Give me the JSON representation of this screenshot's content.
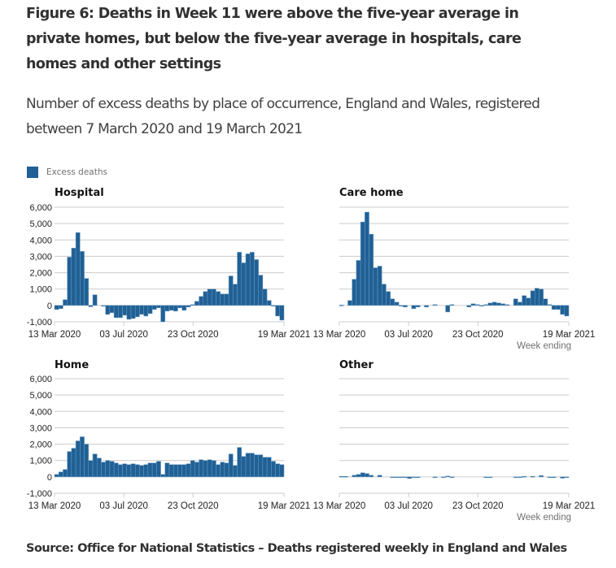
{
  "title": "Figure 6: Deaths in Week 11 were above the five-year average in private homes, but below the five-year average in hospitals, care homes and other settings",
  "subtitle": "Number of excess deaths by place of occurrence, England and Wales, registered between 7 March 2020 and 19 March 2021",
  "legend": {
    "label": "Excess deaths",
    "color": "#206095"
  },
  "source": "Source: Office for National Statistics – Deaths registered weekly in England and Wales",
  "chart_data": [
    {
      "type": "bar",
      "title": "Hospital",
      "xlabel": "",
      "ylabel": "",
      "ylim": [
        -1000,
        6000
      ],
      "yticks": [
        "6,000",
        "5,000",
        "4,000",
        "3,000",
        "2,000",
        "1,000",
        "0",
        "-1,000"
      ],
      "xticks": [
        "13 Mar 2020",
        "03 Jul 2020",
        "23 Oct 2020",
        "19 Mar 2021"
      ],
      "grid": true,
      "values": [
        -250,
        -200,
        350,
        2950,
        3500,
        4450,
        3300,
        1650,
        -80,
        650,
        0,
        -20,
        -550,
        -450,
        -750,
        -750,
        -600,
        -850,
        -800,
        -700,
        -550,
        -650,
        -500,
        -250,
        -150,
        -1000,
        -350,
        -300,
        -350,
        -150,
        -300,
        -100,
        50,
        250,
        550,
        850,
        1000,
        1000,
        850,
        700,
        700,
        1800,
        1300,
        3250,
        2600,
        3150,
        3250,
        2800,
        1850,
        1000,
        300,
        -50,
        -650,
        -900
      ]
    },
    {
      "type": "bar",
      "title": "Care home",
      "xlabel": "Week ending",
      "ylabel": "",
      "ylim": [
        -1000,
        6000
      ],
      "xticks": [
        "13 Mar 2020",
        "03 Jul 2020",
        "23 Oct 2020",
        "19 Mar 2021"
      ],
      "grid": true,
      "values": [
        20,
        0,
        300,
        1600,
        2750,
        5100,
        5700,
        4350,
        2300,
        2400,
        1300,
        850,
        400,
        200,
        -50,
        -100,
        0,
        -200,
        -100,
        0,
        -100,
        0,
        50,
        0,
        0,
        -400,
        50,
        0,
        0,
        0,
        -100,
        100,
        50,
        -50,
        50,
        150,
        200,
        150,
        100,
        50,
        0,
        400,
        200,
        600,
        450,
        900,
        1050,
        1000,
        400,
        50,
        -250,
        -250,
        -550,
        -650
      ]
    },
    {
      "type": "bar",
      "title": "Home",
      "xlabel": "",
      "ylabel": "",
      "ylim": [
        -1000,
        6000
      ],
      "yticks": [
        "6,000",
        "5,000",
        "4,000",
        "3,000",
        "2,000",
        "1,000",
        "0",
        "-1,000"
      ],
      "xticks": [
        "13 Mar 2020",
        "03 Jul 2020",
        "23 Oct 2020",
        "19 Mar 2021"
      ],
      "grid": true,
      "values": [
        150,
        300,
        450,
        1550,
        1750,
        2200,
        2450,
        2000,
        1000,
        1400,
        1150,
        900,
        1000,
        950,
        850,
        750,
        800,
        750,
        800,
        750,
        700,
        750,
        850,
        850,
        950,
        150,
        850,
        750,
        750,
        750,
        750,
        800,
        1000,
        900,
        1050,
        1000,
        1050,
        1000,
        750,
        900,
        850,
        1400,
        700,
        1800,
        1250,
        1450,
        1450,
        1350,
        1350,
        1200,
        1200,
        950,
        800,
        750
      ]
    },
    {
      "type": "bar",
      "title": "Other",
      "xlabel": "Week ending",
      "ylabel": "",
      "ylim": [
        -1000,
        6000
      ],
      "xticks": [
        "13 Mar 2020",
        "03 Jul 2020",
        "23 Oct 2020",
        "19 Mar 2021"
      ],
      "grid": true,
      "values": [
        30,
        30,
        0,
        100,
        150,
        250,
        200,
        100,
        0,
        100,
        0,
        0,
        -30,
        -30,
        -30,
        -30,
        -100,
        -30,
        -30,
        0,
        0,
        0,
        -30,
        0,
        -30,
        50,
        -50,
        0,
        0,
        0,
        0,
        0,
        0,
        0,
        -30,
        -30,
        0,
        0,
        0,
        0,
        0,
        -30,
        -30,
        30,
        0,
        30,
        0,
        80,
        0,
        -30,
        -30,
        0,
        -80,
        -30
      ]
    }
  ]
}
